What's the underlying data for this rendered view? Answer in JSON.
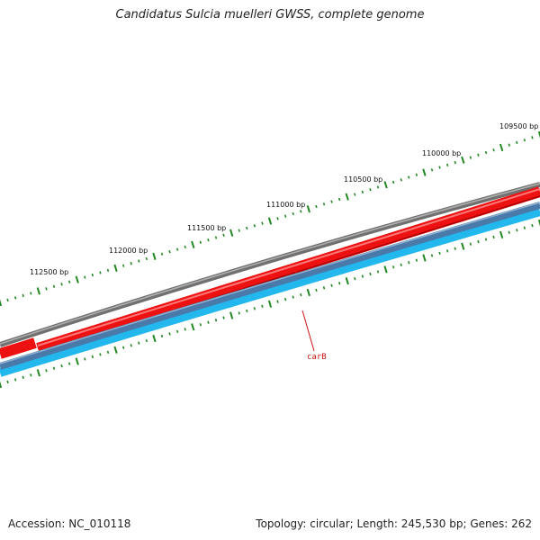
{
  "title": "Candidatus Sulcia muelleri GWSS, complete genome",
  "footer": {
    "accession": "Accession: NC_010118",
    "summary": "Topology: circular; Length: 245,530 bp; Genes: 262"
  },
  "ticks": [
    {
      "label": "109500 bp"
    },
    {
      "label": "110000 bp"
    },
    {
      "label": "110500 bp"
    },
    {
      "label": "111000 bp"
    },
    {
      "label": "111500 bp"
    },
    {
      "label": "112000 bp"
    },
    {
      "label": "112500 bp"
    }
  ],
  "genes": [
    {
      "label": "carB"
    }
  ],
  "colors": {
    "backbone": "#808080",
    "forward_strand": "#ee1111",
    "reverse_strand": "#4a7aaa",
    "reverse_light": "#22b8ee",
    "tick_marks": "#228822",
    "gene_label": "#cc1111"
  }
}
